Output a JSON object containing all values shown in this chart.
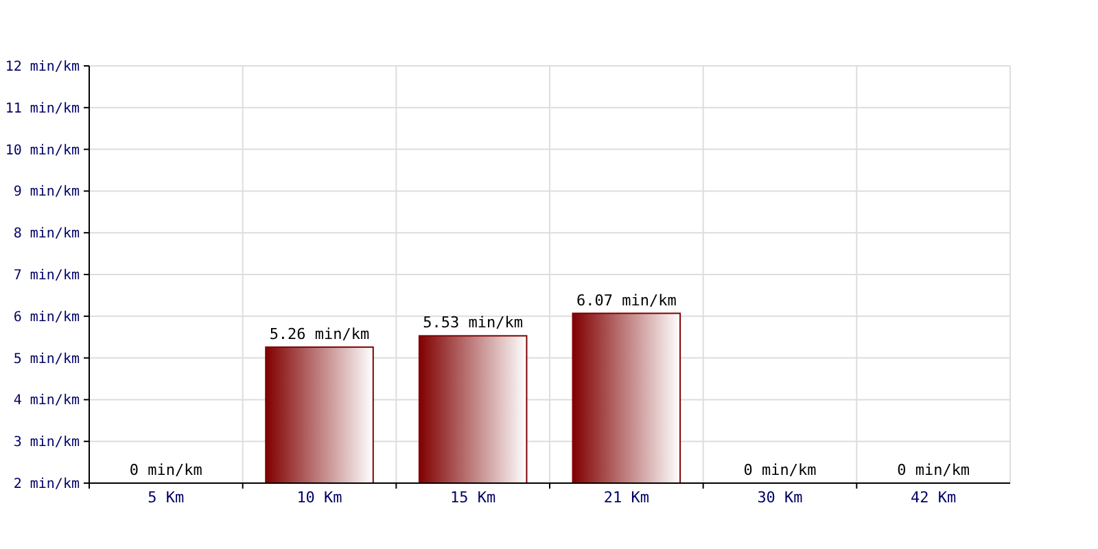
{
  "chart_data": {
    "type": "bar",
    "categories": [
      "5 Km",
      "10 Km",
      "15 Km",
      "21 Km",
      "30 Km",
      "42 Km"
    ],
    "values": [
      null,
      5.26,
      5.53,
      6.07,
      null,
      null
    ],
    "value_labels": [
      "0 min/km",
      "5.26 min/km",
      "5.53 min/km",
      "6.07 min/km",
      "0 min/km",
      "0 min/km"
    ],
    "color": "#800000",
    "ylim": [
      2,
      12
    ],
    "yticks": [
      {
        "value": 2,
        "label": "2 min/km"
      },
      {
        "value": 3,
        "label": "3 min/km"
      },
      {
        "value": 4,
        "label": "4 min/km"
      },
      {
        "value": 5,
        "label": "5 min/km"
      },
      {
        "value": 6,
        "label": "6 min/km"
      },
      {
        "value": 7,
        "label": "7 min/km"
      },
      {
        "value": 8,
        "label": "8 min/km"
      },
      {
        "value": 9,
        "label": "9 min/km"
      },
      {
        "value": 10,
        "label": "10 min/km"
      },
      {
        "value": 11,
        "label": "11 min/km"
      },
      {
        "value": 12,
        "label": "12 min/km"
      }
    ],
    "grid": true
  }
}
